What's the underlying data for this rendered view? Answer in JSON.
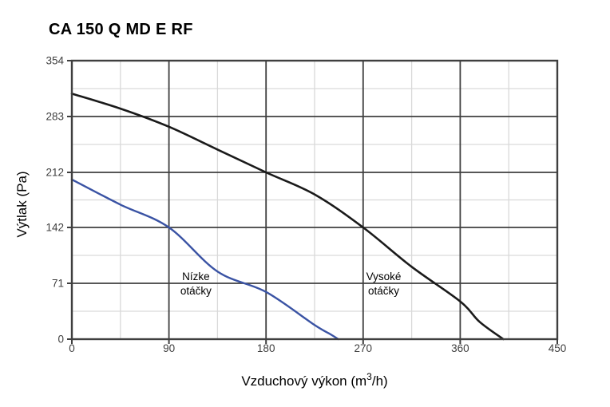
{
  "window": {
    "background": "#ffffff"
  },
  "chart_data": {
    "type": "line",
    "title": "CA 150 Q MD E RF",
    "xlabel": "Vzduchový výkon (m³/h)",
    "xlabel_parts": {
      "prefix": "Vzduchový výkon (m",
      "sup": "3",
      "suffix": "/h)"
    },
    "ylabel": "Výtlak (Pa)",
    "xlim": [
      0,
      450
    ],
    "ylim": [
      0,
      354
    ],
    "x_ticks": [
      0,
      90,
      180,
      270,
      360,
      450
    ],
    "y_ticks": [
      0,
      71,
      142,
      212,
      283,
      354
    ],
    "grid": {
      "major": true,
      "minor": true,
      "major_color": "#3f3f3f",
      "minor_color": "#d9d9d9"
    },
    "legend_position": "inline-annotations",
    "series": [
      {
        "name": "Vysoké otáčky",
        "color": "#1a1a1a",
        "stroke_width": 2.6,
        "points": [
          [
            0,
            312
          ],
          [
            45,
            293
          ],
          [
            90,
            270
          ],
          [
            135,
            241
          ],
          [
            180,
            212
          ],
          [
            225,
            184
          ],
          [
            270,
            142
          ],
          [
            315,
            92
          ],
          [
            360,
            48
          ],
          [
            378,
            22
          ],
          [
            400,
            0
          ]
        ]
      },
      {
        "name": "Nízke otáčky",
        "color": "#3a53a4",
        "stroke_width": 2.4,
        "points": [
          [
            0,
            203
          ],
          [
            45,
            171
          ],
          [
            90,
            142
          ],
          [
            135,
            86
          ],
          [
            180,
            60
          ],
          [
            225,
            18
          ],
          [
            240,
            6
          ],
          [
            247,
            0
          ]
        ]
      }
    ],
    "annotations": [
      {
        "lines": [
          "Nízke",
          "otáčky"
        ],
        "x": 115,
        "y": 71,
        "series": "Nízke otáčky"
      },
      {
        "lines": [
          "Vysoké",
          "otáčky"
        ],
        "x": 289,
        "y": 71,
        "series": "Vysoké otáčky"
      }
    ]
  }
}
